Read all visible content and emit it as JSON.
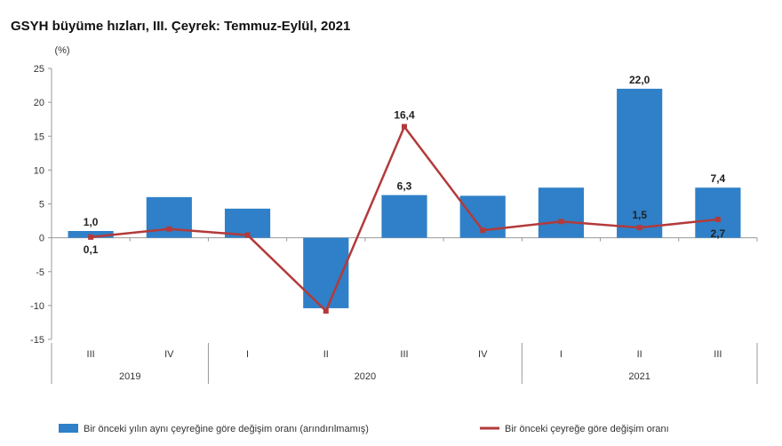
{
  "title": "GSYH büyüme hızları, III. Çeyrek: Temmuz-Eylül, 2021",
  "colors": {
    "bar": "#2f80c8",
    "line": "#b33a3a",
    "axis": "#999999"
  },
  "chart_data": {
    "type": "bar",
    "title": "GSYH büyüme hızları, III. Çeyrek: Temmuz-Eylül, 2021",
    "ylabel": "(%)",
    "xlabel": "",
    "ylim": [
      -15,
      25
    ],
    "yticks": [
      25,
      20,
      15,
      10,
      5,
      0,
      -5,
      -10,
      -15
    ],
    "grid": false,
    "legend_position": "bottom",
    "categories": [
      "III",
      "IV",
      "I",
      "II",
      "III",
      "IV",
      "I",
      "II",
      "III"
    ],
    "groups": [
      {
        "label": "2019",
        "span": 2
      },
      {
        "label": "2020",
        "span": 4
      },
      {
        "label": "2021",
        "span": 3
      }
    ],
    "series": [
      {
        "name": "Bir önceki yılın aynı çeyreğine göre değişim oranı (arındırılmamış)",
        "type": "bar",
        "values": [
          1.0,
          6.0,
          4.3,
          -10.4,
          6.3,
          6.2,
          7.4,
          22.0,
          7.4
        ],
        "labels": [
          "1,0",
          "",
          "",
          "",
          "6,3",
          "",
          "",
          "22,0",
          "7,4"
        ]
      },
      {
        "name": "Bir önceki çeyreğe göre değişim oranı",
        "type": "line",
        "values": [
          0.1,
          1.3,
          0.4,
          -10.8,
          16.4,
          1.1,
          2.4,
          1.5,
          2.7
        ],
        "labels": [
          "0,1",
          "",
          "",
          "",
          "16,4",
          "",
          "",
          "1,5",
          "2,7"
        ]
      }
    ]
  }
}
